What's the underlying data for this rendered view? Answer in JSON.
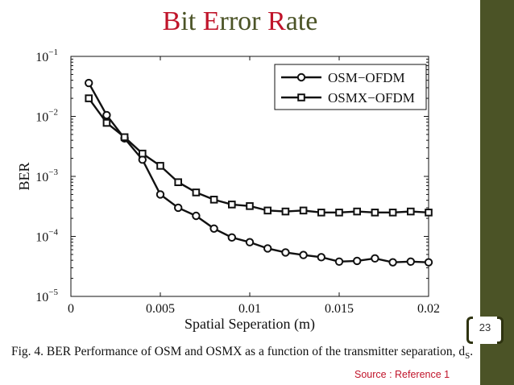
{
  "slide": {
    "title_parts": [
      {
        "text": "B",
        "cap": true
      },
      {
        "text": "it ",
        "cap": false
      },
      {
        "text": "E",
        "cap": true
      },
      {
        "text": "rror ",
        "cap": false
      },
      {
        "text": "R",
        "cap": true
      },
      {
        "text": "ate",
        "cap": false
      }
    ],
    "page_number": "23",
    "caption": "Fig. 4.   BER Performance of OSM and OSMX as a function of the transmitter separation, d",
    "caption_subscript": "S",
    "caption_end": ".",
    "source": "Source : Reference 1",
    "colors": {
      "accent": "#c0142a",
      "title": "#4b5326",
      "sidebar": "#4b5326"
    }
  },
  "chart_data": {
    "type": "line",
    "title": "",
    "xlabel": "Spatial Seperation (m)",
    "ylabel": "BER",
    "xlim": [
      0,
      0.02
    ],
    "ylim_exponent": [
      -5,
      -1
    ],
    "yscale": "log",
    "x_ticks": [
      0,
      0.005,
      0.01,
      0.015,
      0.02
    ],
    "x_tick_labels": [
      "0",
      "0.005",
      "0.01",
      "0.015",
      "0.02"
    ],
    "y_ticks": [
      {
        "base": "10",
        "exp": "−1",
        "value": 0.1
      },
      {
        "base": "10",
        "exp": "−2",
        "value": 0.01
      },
      {
        "base": "10",
        "exp": "−3",
        "value": 0.001
      },
      {
        "base": "10",
        "exp": "−4",
        "value": 0.0001
      },
      {
        "base": "10",
        "exp": "−5",
        "value": 1e-05
      }
    ],
    "legend_position": "top-right",
    "x": [
      0.001,
      0.002,
      0.003,
      0.004,
      0.005,
      0.006,
      0.007,
      0.008,
      0.009,
      0.01,
      0.011,
      0.012,
      0.013,
      0.014,
      0.015,
      0.016,
      0.017,
      0.018,
      0.019,
      0.02
    ],
    "series": [
      {
        "name": "OSM−OFDM",
        "marker": "circle",
        "values": [
          0.036,
          0.0105,
          0.0043,
          0.0019,
          0.0005,
          0.0003,
          0.00022,
          0.000135,
          9.6e-05,
          8e-05,
          6.3e-05,
          5.4e-05,
          4.9e-05,
          4.5e-05,
          3.8e-05,
          3.9e-05,
          4.3e-05,
          3.7e-05,
          3.8e-05,
          3.7e-05
        ]
      },
      {
        "name": "OSMX−OFDM",
        "marker": "square",
        "values": [
          0.02,
          0.0078,
          0.0045,
          0.0024,
          0.0015,
          0.0008,
          0.00054,
          0.00041,
          0.00034,
          0.00032,
          0.00027,
          0.00026,
          0.00027,
          0.00025,
          0.00025,
          0.00026,
          0.00025,
          0.00025,
          0.00026,
          0.00025
        ]
      }
    ]
  }
}
